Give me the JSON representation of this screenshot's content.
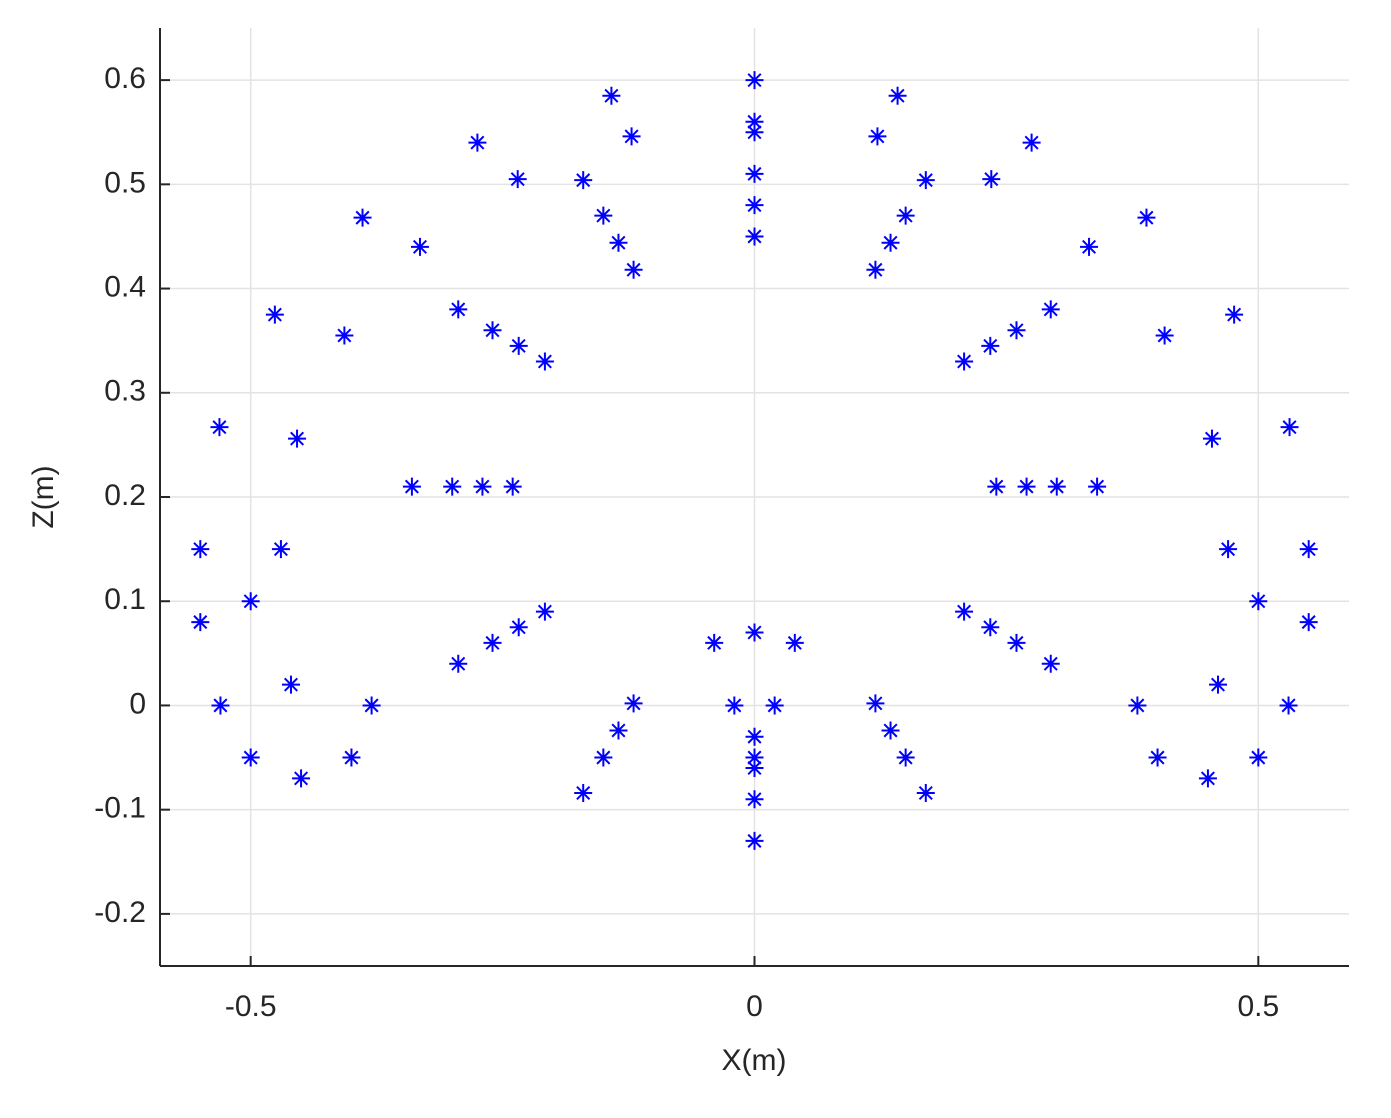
{
  "chart_data": {
    "type": "scatter",
    "xlabel": "X(m)",
    "ylabel": "Z(m)",
    "color": "#0000ff",
    "grid": true,
    "xlim": [
      -0.59,
      0.59
    ],
    "ylim": [
      -0.25,
      0.65
    ],
    "xticks": [
      -0.5,
      0,
      0.5
    ],
    "yticks": [
      -0.2,
      -0.1,
      0,
      0.1,
      0.2,
      0.3,
      0.4,
      0.5,
      0.6
    ],
    "x": [
      0.24,
      0.208,
      0.12,
      0,
      -0.12,
      -0.208,
      -0.24,
      -0.208,
      -0.12,
      0,
      0.12,
      0.208,
      0.27,
      0.234,
      0.135,
      0,
      -0.135,
      -0.234,
      -0.27,
      -0.234,
      -0.135,
      0,
      0.135,
      0.234,
      0.3,
      0.26,
      0.15,
      0,
      -0.15,
      -0.26,
      -0.3,
      -0.26,
      -0.15,
      0,
      0.15,
      0.26,
      0.34,
      0.294,
      0.17,
      0,
      -0.17,
      -0.294,
      -0.34,
      -0.294,
      -0.17,
      0,
      0.17,
      0.294,
      0.47,
      0.454,
      0.407,
      0.332,
      0.235,
      0.122,
      0,
      -0.122,
      -0.235,
      -0.332,
      -0.407,
      -0.454,
      -0.47,
      0.55,
      0.531,
      0.476,
      0.389,
      0.275,
      0.142,
      0,
      -0.142,
      -0.275,
      -0.389,
      -0.476,
      -0.531,
      -0.55,
      -0.55,
      -0.53,
      -0.5,
      -0.45,
      -0.4,
      -0.38,
      -0.46,
      -0.5,
      0.55,
      0.53,
      0.5,
      0.45,
      0.4,
      0.38,
      0.46,
      0.5,
      0,
      -0.04,
      0.04,
      -0.02,
      0.02,
      0
    ],
    "y": [
      0.21,
      0.33,
      0.418,
      0.45,
      0.418,
      0.33,
      0.21,
      0.09,
      0.002,
      -0.03,
      0.002,
      0.09,
      0.21,
      0.345,
      0.444,
      0.48,
      0.444,
      0.345,
      0.21,
      0.075,
      -0.024,
      -0.06,
      -0.024,
      0.075,
      0.21,
      0.36,
      0.47,
      0.51,
      0.47,
      0.36,
      0.21,
      0.06,
      -0.05,
      -0.09,
      -0.05,
      0.06,
      0.21,
      0.38,
      0.504,
      0.55,
      0.504,
      0.38,
      0.21,
      0.04,
      -0.084,
      -0.13,
      -0.084,
      0.04,
      0.15,
      0.256,
      0.355,
      0.44,
      0.505,
      0.546,
      0.56,
      0.546,
      0.505,
      0.44,
      0.355,
      0.256,
      0.15,
      0.15,
      0.267,
      0.375,
      0.468,
      0.54,
      0.585,
      0.6,
      0.585,
      0.54,
      0.468,
      0.375,
      0.267,
      0.15,
      0.08,
      0,
      -0.05,
      -0.07,
      -0.05,
      0,
      0.02,
      0.1,
      0.08,
      0,
      -0.05,
      -0.07,
      -0.05,
      0,
      0.02,
      0.1,
      0.07,
      0.06,
      0.06,
      0,
      0,
      -0.05
    ]
  }
}
